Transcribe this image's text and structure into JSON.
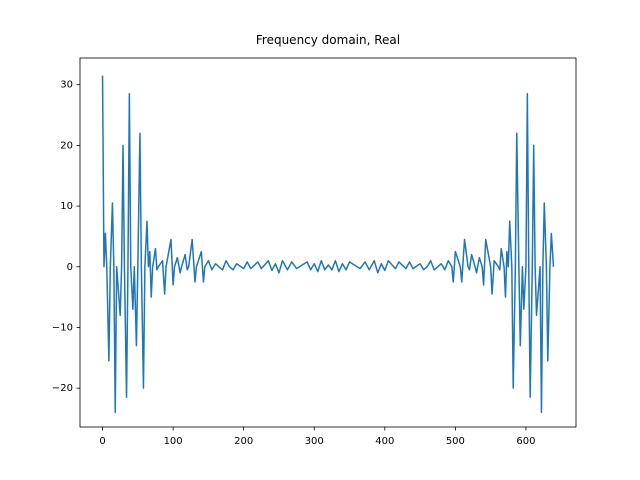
{
  "chart_data": {
    "type": "line",
    "title": "Frequency domain, Real",
    "xlim": [
      -31.95,
      670.95
    ],
    "ylim": [
      -26.4,
      34.4
    ],
    "xticks": [
      0,
      100,
      200,
      300,
      400,
      500,
      600
    ],
    "yticks": [
      {
        "value": -20,
        "label": "−20"
      },
      {
        "value": -10,
        "label": "−10"
      },
      0,
      10,
      20,
      30
    ],
    "series": [
      {
        "color": "#1f77b4",
        "x": [
          0,
          2,
          4,
          6,
          9,
          11,
          14,
          16,
          18,
          20,
          25,
          27,
          29,
          31,
          34,
          36,
          38,
          40,
          43,
          45,
          48,
          50,
          53,
          55,
          58,
          60,
          63,
          65,
          67,
          69,
          71,
          75,
          77,
          79,
          85,
          88,
          90,
          97,
          100,
          102,
          106,
          110,
          112,
          117,
          120,
          122,
          127,
          131,
          133,
          140,
          143,
          145,
          150,
          155,
          160,
          165,
          170,
          175,
          180,
          185,
          190,
          200,
          205,
          210,
          220,
          225,
          235,
          240,
          245,
          250,
          255,
          262,
          268,
          275,
          290,
          295,
          300,
          305,
          310,
          315,
          320,
          325,
          330,
          335,
          340,
          345,
          350,
          365,
          372,
          378,
          385,
          390,
          395,
          400,
          405,
          415,
          420,
          430,
          435,
          440,
          450,
          455,
          460,
          465,
          470,
          475,
          480,
          485,
          490,
          495,
          497,
          500,
          507,
          509,
          513,
          518,
          520,
          523,
          528,
          530,
          534,
          538,
          540,
          543,
          550,
          552,
          555,
          561,
          563,
          565,
          569,
          571,
          573,
          575,
          577,
          580,
          582,
          585,
          587,
          590,
          592,
          595,
          597,
          600,
          602,
          604,
          606,
          609,
          611,
          613,
          615,
          620,
          622,
          624,
          626,
          629,
          631,
          634,
          636,
          639
        ],
        "values": [
          31.5,
          0,
          5.5,
          0,
          -15.5,
          0,
          10.5,
          0,
          -24,
          0,
          -8,
          0,
          20,
          0,
          -21.5,
          0,
          28.5,
          0,
          -7,
          0,
          -13,
          0,
          22,
          0,
          -20,
          0,
          7.5,
          0,
          2.5,
          -5,
          0,
          3,
          -0.5,
          0,
          1,
          -4.5,
          0,
          4.5,
          -3,
          0,
          1.5,
          -1,
          0,
          2,
          -0.5,
          0,
          4.5,
          -2.5,
          0,
          2.5,
          -2.5,
          0,
          1,
          -0.5,
          0.5,
          0,
          -0.5,
          1,
          0,
          -0.5,
          0.5,
          -0.3,
          0.8,
          -0.3,
          0.8,
          -0.3,
          1,
          -0.6,
          0.5,
          -1,
          1,
          -0.5,
          0.8,
          -0.3,
          0.8,
          -0.5,
          0.5,
          -0.8,
          1,
          -0.5,
          0.3,
          -0.5,
          1,
          -0.8,
          0.5,
          -0.5,
          0.8,
          -0.3,
          0.8,
          -0.5,
          1,
          -1,
          0.5,
          -0.6,
          1,
          -0.3,
          0.8,
          -0.3,
          0.8,
          -0.3,
          0.5,
          -0.5,
          0,
          1,
          -0.5,
          0,
          0.5,
          -0.5,
          1,
          0,
          -2.5,
          2.5,
          0,
          -2.5,
          4.5,
          0,
          -0.5,
          2,
          0,
          -1,
          1.5,
          0,
          -3,
          4.5,
          0,
          -4.5,
          1,
          0,
          -0.5,
          3,
          0,
          -5,
          2.5,
          0,
          7.5,
          0,
          -20,
          0,
          22,
          0,
          -13,
          0,
          -7,
          0,
          28.5,
          0,
          -21.5,
          0,
          20,
          0,
          -8,
          0,
          -24,
          0,
          10.5,
          0,
          -15.5,
          0,
          5.5,
          0
        ]
      }
    ]
  }
}
